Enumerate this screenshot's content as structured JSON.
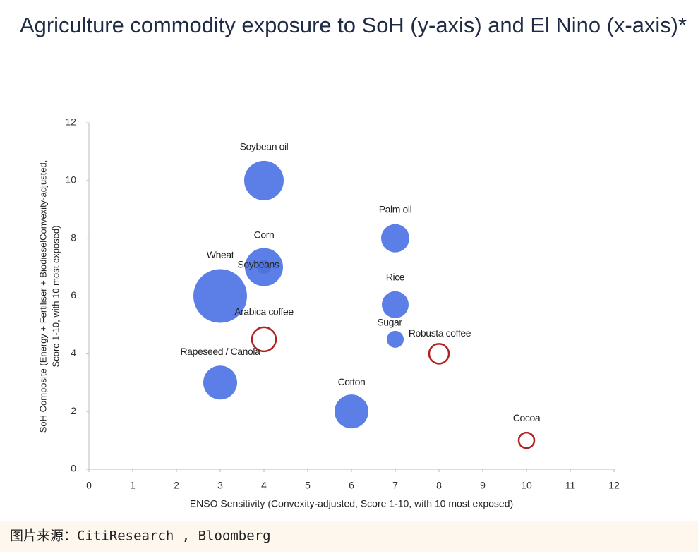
{
  "chart_data": {
    "type": "bubble",
    "title": "Agriculture commodity exposure to SoH (y-axis) and El Nino (x-axis)*",
    "x_label": "ENSO Sensitivity (Convexity-adjusted, Score 1-10, with 10 most exposed)",
    "y_label": [
      "SoH Composite (Energy + Fertiliser + BiodieselConvexity-adjusted,",
      "Score 1-10, with 10 most exposed)"
    ],
    "labels": [
      "Soybean oil",
      "Palm oil",
      "Soybeans",
      "Corn",
      "Wheat",
      "Rice",
      "Arabica coffee",
      "Sugar",
      "Robusta coffee",
      "Rapeseed / Canola",
      "Cotton",
      "Cocoa"
    ],
    "x": [
      4,
      7,
      4,
      4,
      3,
      7,
      4,
      7,
      8,
      3,
      6,
      10
    ],
    "y": [
      10,
      8,
      7,
      7,
      6,
      5.7,
      4.5,
      4.5,
      4,
      3,
      2,
      1
    ],
    "sizes": [
      28,
      20,
      27,
      10,
      38,
      19,
      17,
      12,
      14,
      24,
      24,
      11
    ],
    "colors": [
      "#5b7fe6",
      "#5b7fe6",
      "#5b7fe6",
      "#4f73dc",
      "#5b7fe6",
      "#5b7fe6",
      "#b22222",
      "#5b7fe6",
      "#b22222",
      "#5b7fe6",
      "#5b7fe6",
      "#b22222"
    ],
    "hollow": [
      false,
      false,
      false,
      false,
      false,
      false,
      true,
      false,
      true,
      false,
      false,
      true
    ],
    "xlim": [
      0,
      12
    ],
    "xticks": [
      0,
      1,
      2,
      3,
      4,
      5,
      6,
      7,
      8,
      9,
      10,
      11,
      12
    ],
    "ylim": [
      0,
      12
    ],
    "yticks": [
      0,
      2,
      4,
      6,
      8,
      10,
      12
    ],
    "source": "图片来源：CitiResearch , Bloomberg"
  }
}
